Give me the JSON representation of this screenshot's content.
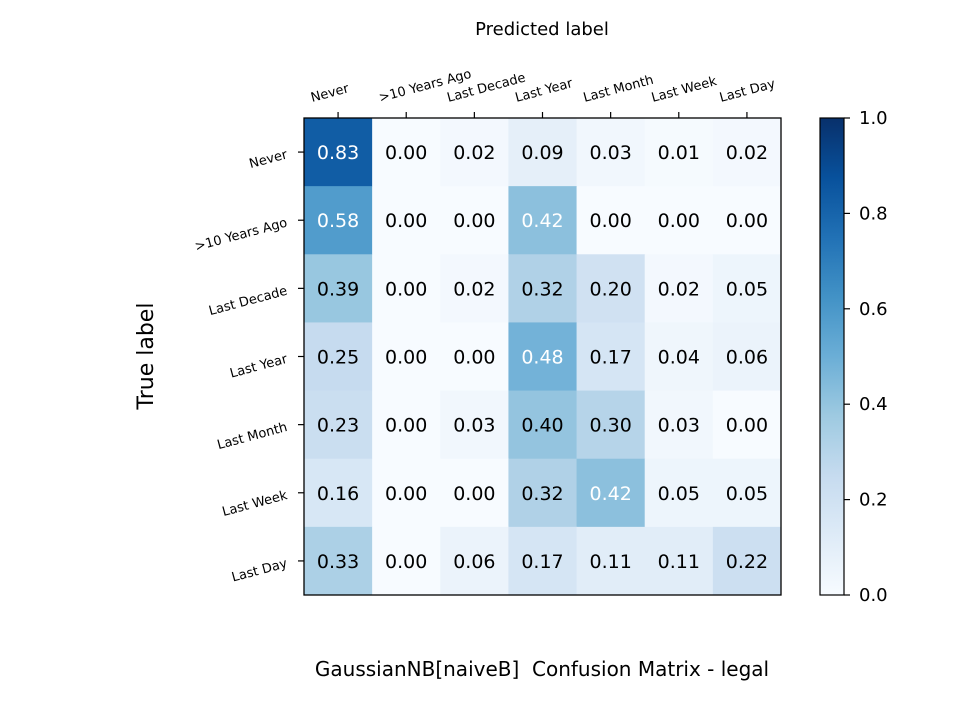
{
  "chart_data": {
    "type": "heatmap",
    "title": "GaussianNB[naiveB]  Confusion Matrix - legal",
    "xlabel": "Predicted label",
    "ylabel": "True label",
    "x_categories": [
      "Never",
      ">10 Years Ago",
      "Last Decade",
      "Last Year",
      "Last Month",
      "Last Week",
      "Last Day"
    ],
    "y_categories": [
      "Never",
      ">10 Years Ago",
      "Last Decade",
      "Last Year",
      "Last Month",
      "Last Week",
      "Last Day"
    ],
    "values": [
      [
        0.83,
        0.0,
        0.02,
        0.09,
        0.03,
        0.01,
        0.02
      ],
      [
        0.58,
        0.0,
        0.0,
        0.42,
        0.0,
        0.0,
        0.0
      ],
      [
        0.39,
        0.0,
        0.02,
        0.32,
        0.2,
        0.02,
        0.05
      ],
      [
        0.25,
        0.0,
        0.0,
        0.48,
        0.17,
        0.04,
        0.06
      ],
      [
        0.23,
        0.0,
        0.03,
        0.4,
        0.3,
        0.03,
        0.0
      ],
      [
        0.16,
        0.0,
        0.0,
        0.32,
        0.42,
        0.05,
        0.05
      ],
      [
        0.33,
        0.0,
        0.06,
        0.17,
        0.11,
        0.11,
        0.22
      ]
    ],
    "colormap": "Blues",
    "colorbar": {
      "range": [
        0.0,
        1.0
      ],
      "ticks": [
        "0.0",
        "0.2",
        "0.4",
        "0.6",
        "0.8",
        "1.0"
      ]
    },
    "grid": false,
    "legend": "none"
  }
}
